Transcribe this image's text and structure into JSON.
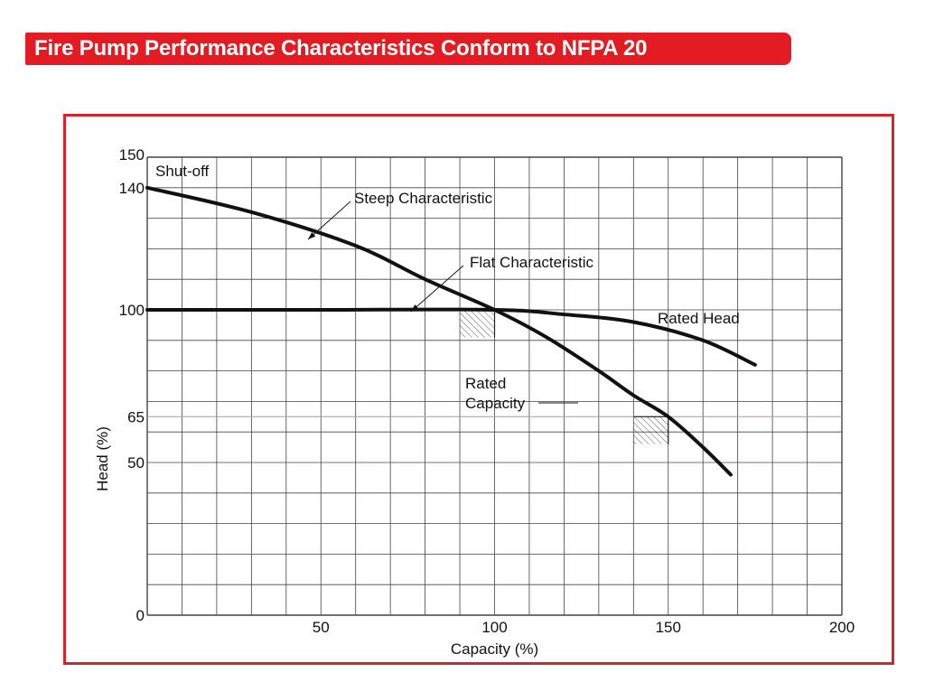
{
  "title": "Fire Pump Performance Characteristics Conform to NFPA 20",
  "colors": {
    "banner": "#e31b23",
    "frame": "#d6222b",
    "reference_line": "#d9838a",
    "curve": "#111111"
  },
  "chart_data": {
    "type": "line",
    "xlabel": "Capacity (%)",
    "ylabel": "Head (%)",
    "xlim": [
      0,
      200
    ],
    "ylim": [
      0,
      150
    ],
    "x_ticks": [
      50,
      100,
      150,
      200
    ],
    "y_ticks": [
      0,
      50,
      65,
      100,
      140,
      150
    ],
    "grid": true,
    "series": [
      {
        "name": "Steep Characteristic",
        "points": [
          [
            0,
            140
          ],
          [
            30,
            132
          ],
          [
            60,
            121
          ],
          [
            80,
            110
          ],
          [
            100,
            100
          ],
          [
            115,
            91
          ],
          [
            130,
            80
          ],
          [
            140,
            72
          ],
          [
            150,
            65
          ],
          [
            160,
            55
          ],
          [
            168,
            46
          ]
        ]
      },
      {
        "name": "Flat Characteristic",
        "points": [
          [
            0,
            100
          ],
          [
            50,
            100
          ],
          [
            100,
            100
          ],
          [
            120,
            98.5
          ],
          [
            140,
            96
          ],
          [
            160,
            90
          ],
          [
            175,
            82
          ]
        ]
      }
    ],
    "reference_lines": [
      {
        "axis": "y",
        "value": 65
      }
    ],
    "annotations": {
      "shutoff": "Shut-off",
      "rated_head": "Rated Head",
      "rated_capacity": [
        "Rated",
        "Capacity"
      ]
    }
  }
}
